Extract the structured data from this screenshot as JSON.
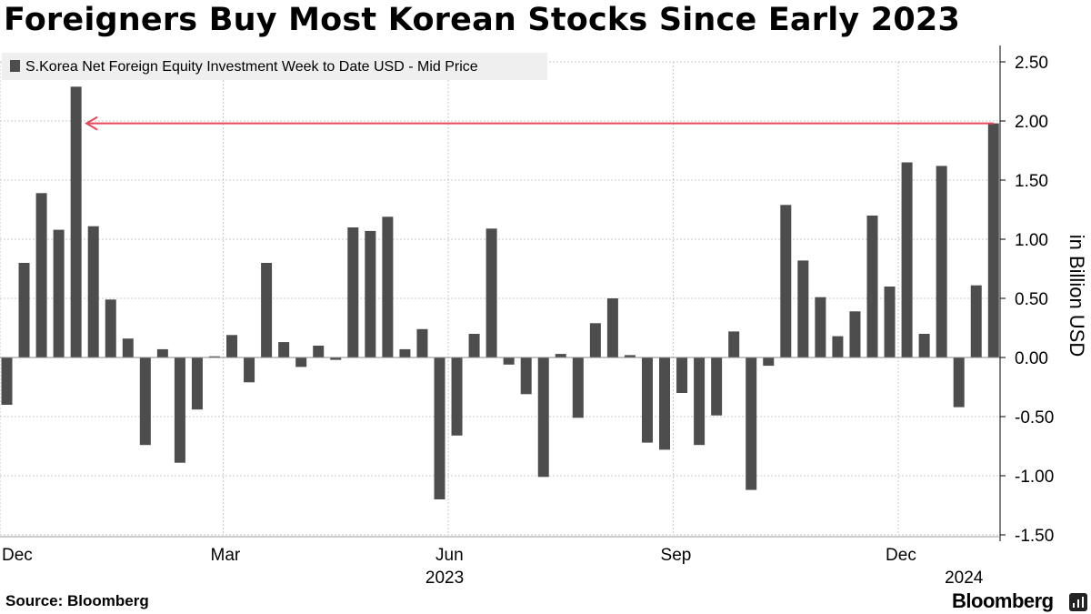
{
  "title": "Foreigners Buy Most Korean Stocks Since Early 2023",
  "footer": {
    "source": "Source: Bloomberg",
    "brand": "Bloomberg"
  },
  "colors": {
    "bar": "#4d4d4d",
    "grid": "#c8c8c8",
    "arrow": "#e8495a",
    "legend_bg": "#efefef"
  },
  "chart_data": {
    "type": "bar",
    "legend": "S.Korea Net Foreign Equity Investment Week to Date USD - Mid Price",
    "ylabel": "in Billion USD",
    "ylim": [
      -1.5,
      2.5
    ],
    "yticks": [
      2.5,
      2.0,
      1.5,
      1.0,
      0.5,
      0.0,
      -0.5,
      -1.0,
      -1.5
    ],
    "ytick_labels": [
      "2.50",
      "2.00",
      "1.50",
      "1.00",
      "0.50",
      "0.00",
      "-0.50",
      "-1.00",
      "-1.50"
    ],
    "x_month_labels": [
      {
        "label": "Dec",
        "at_week": 0
      },
      {
        "label": "Mar",
        "at_week": 12.5
      },
      {
        "label": "Jun",
        "at_week": 25.5
      },
      {
        "label": "Sep",
        "at_week": 38.5
      },
      {
        "label": "Dec",
        "at_week": 51.5
      }
    ],
    "x_year_labels": [
      {
        "label": "2023",
        "at_week": 25.5
      },
      {
        "label": "2024",
        "at_week": 55.5
      }
    ],
    "values": [
      -0.4,
      0.8,
      1.39,
      1.08,
      2.29,
      1.11,
      0.49,
      0.16,
      -0.74,
      0.07,
      -0.89,
      -0.44,
      0.01,
      0.19,
      -0.21,
      0.8,
      0.13,
      -0.08,
      0.1,
      -0.02,
      1.1,
      1.07,
      1.19,
      0.07,
      0.24,
      -1.2,
      -0.66,
      0.2,
      1.09,
      -0.06,
      -0.31,
      -1.01,
      0.03,
      -0.51,
      0.29,
      0.5,
      0.02,
      -0.72,
      -0.78,
      -0.3,
      -0.74,
      -0.49,
      0.22,
      -1.12,
      -0.07,
      1.29,
      0.82,
      0.51,
      0.18,
      0.39,
      1.2,
      0.6,
      1.65,
      0.2,
      1.62,
      -0.42,
      0.61,
      1.98
    ],
    "annotation": {
      "type": "arrow",
      "from_week": 57,
      "to_week": 4.6,
      "y": 1.98
    }
  }
}
